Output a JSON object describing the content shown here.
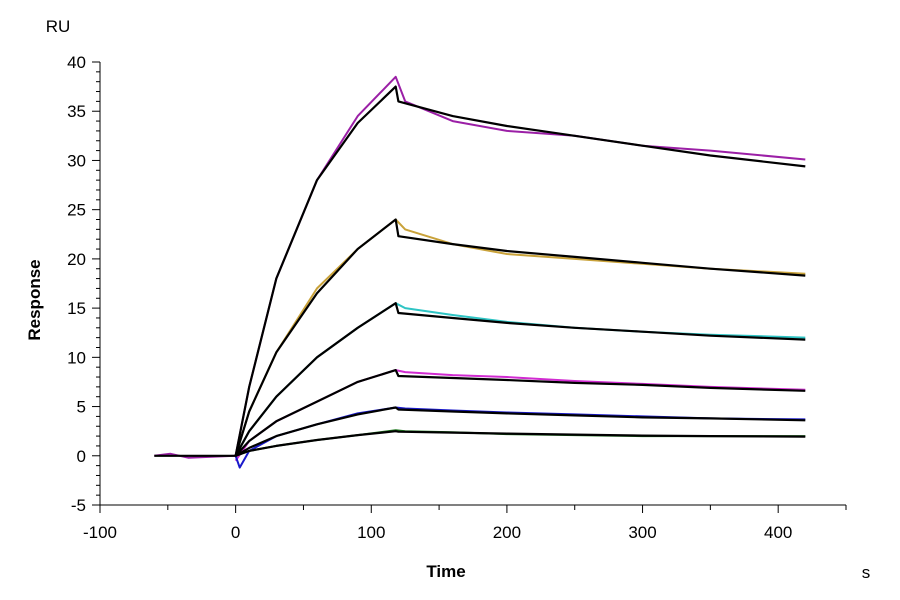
{
  "chart_data": {
    "type": "line",
    "xlabel": "Time",
    "ylabel": "Response",
    "x_unit": "s",
    "y_unit": "RU",
    "xlim": [
      -100,
      450
    ],
    "ylim": [
      -5,
      40
    ],
    "x_ticks": [
      -100,
      0,
      100,
      200,
      300,
      400
    ],
    "y_ticks": [
      -5,
      0,
      5,
      10,
      15,
      20,
      25,
      30,
      35,
      40
    ],
    "x_tick_labels": [
      "-100",
      "0",
      "100",
      "200",
      "300",
      "400"
    ],
    "y_tick_labels": [
      "-5",
      "0",
      "5",
      "10",
      "15",
      "20",
      "25",
      "30",
      "35",
      "40"
    ],
    "grid": false,
    "legend": "none",
    "fit_color": "#000000",
    "series": [
      {
        "color": "#9b1fa6",
        "x": [
          -60,
          -48,
          -35,
          0,
          10,
          30,
          60,
          90,
          118,
          125,
          160,
          200,
          250,
          300,
          350,
          420
        ],
        "y": [
          0,
          0.2,
          -0.2,
          0,
          7,
          18,
          28,
          34.5,
          38.5,
          36,
          34,
          33,
          32.5,
          31.5,
          31,
          30.1
        ]
      },
      {
        "color": "#c9a23a",
        "x": [
          0,
          10,
          30,
          60,
          90,
          118,
          125,
          160,
          200,
          250,
          300,
          350,
          420
        ],
        "y": [
          0,
          4.5,
          10.5,
          17,
          21,
          24,
          23,
          21.5,
          20.5,
          20,
          19.5,
          19,
          18.5
        ]
      },
      {
        "color": "#2ec4c4",
        "x": [
          0,
          10,
          30,
          60,
          90,
          118,
          125,
          160,
          200,
          250,
          300,
          350,
          420
        ],
        "y": [
          0,
          2.5,
          6,
          10,
          13,
          15.5,
          15,
          14.3,
          13.6,
          13,
          12.6,
          12.3,
          12
        ]
      },
      {
        "color": "#d12bd1",
        "x": [
          0,
          10,
          30,
          60,
          90,
          118,
          125,
          160,
          200,
          250,
          300,
          350,
          420
        ],
        "y": [
          -0.5,
          1.5,
          3.5,
          5.5,
          7.5,
          8.7,
          8.5,
          8.2,
          8,
          7.6,
          7.3,
          7,
          6.7
        ]
      },
      {
        "color": "#1a1acc",
        "x": [
          0,
          3,
          10,
          30,
          60,
          90,
          118,
          125,
          160,
          200,
          250,
          300,
          350,
          420
        ],
        "y": [
          0,
          -1.2,
          0.5,
          2,
          3.2,
          4.3,
          4.9,
          4.8,
          4.6,
          4.4,
          4.2,
          4,
          3.8,
          3.7
        ]
      },
      {
        "color": "#1e7a1e",
        "x": [
          0,
          10,
          30,
          60,
          90,
          118,
          125,
          160,
          200,
          250,
          300,
          350,
          420
        ],
        "y": [
          0,
          0.5,
          1,
          1.6,
          2.1,
          2.6,
          2.5,
          2.4,
          2.2,
          2.1,
          2,
          2,
          2
        ]
      }
    ],
    "fits": [
      {
        "x": [
          -60,
          0,
          10,
          30,
          60,
          90,
          118,
          120,
          160,
          200,
          250,
          300,
          350,
          420
        ],
        "y": [
          0,
          0,
          7,
          18,
          28,
          33.8,
          37.5,
          36,
          34.5,
          33.5,
          32.5,
          31.5,
          30.5,
          29.4
        ]
      },
      {
        "x": [
          0,
          10,
          30,
          60,
          90,
          118,
          120,
          160,
          200,
          250,
          300,
          350,
          420
        ],
        "y": [
          0,
          4.5,
          10.5,
          16.5,
          21,
          24,
          22.3,
          21.5,
          20.8,
          20.2,
          19.6,
          19,
          18.3
        ]
      },
      {
        "x": [
          0,
          10,
          30,
          60,
          90,
          118,
          120,
          160,
          200,
          250,
          300,
          350,
          420
        ],
        "y": [
          0,
          2.5,
          6,
          10,
          13,
          15.5,
          14.5,
          14,
          13.5,
          13,
          12.6,
          12.2,
          11.8
        ]
      },
      {
        "x": [
          0,
          10,
          30,
          60,
          90,
          118,
          120,
          160,
          200,
          250,
          300,
          350,
          420
        ],
        "y": [
          0,
          1.5,
          3.5,
          5.5,
          7.5,
          8.7,
          8.1,
          7.9,
          7.7,
          7.4,
          7.2,
          6.9,
          6.6
        ]
      },
      {
        "x": [
          0,
          10,
          30,
          60,
          90,
          118,
          120,
          160,
          200,
          250,
          300,
          350,
          420
        ],
        "y": [
          0,
          0.8,
          2,
          3.2,
          4.2,
          4.9,
          4.7,
          4.5,
          4.3,
          4.1,
          3.9,
          3.8,
          3.6
        ]
      },
      {
        "x": [
          0,
          10,
          30,
          60,
          90,
          118,
          120,
          160,
          200,
          250,
          300,
          350,
          420
        ],
        "y": [
          0,
          0.5,
          1,
          1.6,
          2.1,
          2.5,
          2.45,
          2.35,
          2.25,
          2.15,
          2.05,
          2,
          1.95
        ]
      }
    ]
  }
}
